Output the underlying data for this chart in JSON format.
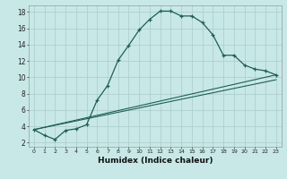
{
  "xlabel": "Humidex (Indice chaleur)",
  "background_color": "#c8e8e8",
  "grid_color": "#b0d0d0",
  "line_color": "#1e5f52",
  "xlim_min": -0.5,
  "xlim_max": 23.5,
  "ylim_min": 1.5,
  "ylim_max": 18.8,
  "yticks": [
    2,
    4,
    6,
    8,
    10,
    12,
    14,
    16,
    18
  ],
  "xtick_positions": [
    0,
    1,
    2,
    3,
    4,
    5,
    6,
    7,
    8,
    9,
    10,
    11,
    12,
    13,
    14,
    15,
    16,
    17,
    18,
    19,
    20,
    21,
    22,
    23
  ],
  "xtick_labels": [
    "0",
    "1",
    "2",
    "3",
    "4",
    "5",
    "6",
    "7",
    "8",
    "9",
    "10",
    "11",
    "12",
    "13",
    "14",
    "15",
    "16",
    "17",
    "18",
    "19",
    "20",
    "21",
    "22",
    "23"
  ],
  "curve1_x": [
    0,
    1,
    2,
    3,
    4,
    5,
    6,
    7,
    8,
    9,
    10,
    11,
    12,
    13,
    14,
    15,
    16,
    17,
    18,
    19,
    20,
    21,
    22,
    23
  ],
  "curve1_y": [
    3.6,
    2.9,
    2.4,
    3.5,
    3.7,
    4.2,
    7.2,
    9.0,
    12.1,
    13.9,
    15.8,
    17.1,
    18.1,
    18.1,
    17.5,
    17.5,
    16.7,
    15.2,
    12.7,
    12.7,
    11.5,
    11.0,
    10.8,
    10.3
  ],
  "curve2_x": [
    0,
    23
  ],
  "curve2_y": [
    3.6,
    10.3
  ],
  "curve3_x": [
    0,
    23
  ],
  "curve3_y": [
    3.6,
    9.7
  ]
}
